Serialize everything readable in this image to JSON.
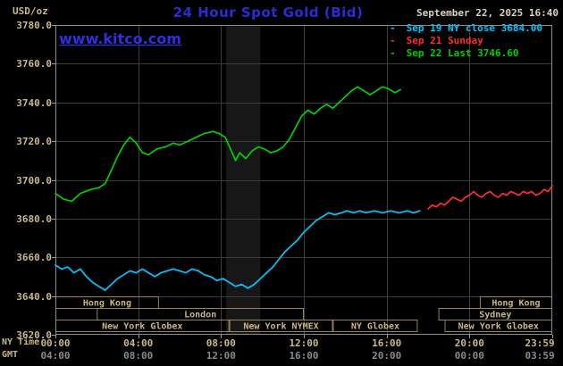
{
  "header": {
    "units": "USD/oz",
    "title": "24 Hour Spot Gold (Bid)",
    "datetime": "September 22, 2025 16:40",
    "watermark": "www.kitco.com"
  },
  "legend": {
    "items": [
      {
        "dash": "-",
        "label": "Sep 19 NY close 3684.00",
        "color": "#00c6ff"
      },
      {
        "dash": "-",
        "label": "Sep 21 Sunday",
        "color": "#ff2e2e"
      },
      {
        "dash": "-",
        "label": "Sep 22 Last 3746.60",
        "color": "#00cf00"
      }
    ]
  },
  "axes": {
    "ny": "NY Time",
    "gmt": "GMT"
  },
  "colors": {
    "background": "#000000",
    "title": "#2b2bd8",
    "watermark": "#2f2fe0",
    "datetime": "#d9d2c0",
    "tan": "#c9b787",
    "gray": "#8a8a8a",
    "grid": "#3d3d3d",
    "border": "#8c8c8c",
    "tick": "#9a9a9a",
    "band": "#171717",
    "session_border": "#96854f",
    "session_text": "#c9b787"
  },
  "chart_data": {
    "type": "line",
    "title": "24 Hour Spot Gold (Bid)",
    "xlabel": "NY Time",
    "ylabel": "USD/oz",
    "ylim": [
      3620,
      3780
    ],
    "xlim_hours": [
      0,
      24
    ],
    "grid": true,
    "legend_position": "top-right",
    "y_ticks": [
      3780,
      3760,
      3740,
      3720,
      3700,
      3680,
      3660,
      3640,
      3620
    ],
    "x_ticks": [
      {
        "t": 0,
        "ny": "00:00",
        "gmt": "04:00"
      },
      {
        "t": 4,
        "ny": "04:00",
        "gmt": "08:00"
      },
      {
        "t": 8,
        "ny": "08:00",
        "gmt": "12:00"
      },
      {
        "t": 12,
        "ny": "12:00",
        "gmt": "16:00"
      },
      {
        "t": 16,
        "ny": "16:00",
        "gmt": "20:00"
      },
      {
        "t": 20,
        "ny": "20:00",
        "gmt": "00:00"
      },
      {
        "t": 24,
        "ny": "23:59",
        "gmt": "03:59"
      }
    ],
    "shaded_bands": [
      {
        "t0": 8.25,
        "t1": 9.9
      }
    ],
    "sessions": [
      {
        "row": 0,
        "t0": 0,
        "t1": 5,
        "label": "Hong Kong"
      },
      {
        "row": 0,
        "t0": 20.5,
        "t1": 24,
        "label": "Hong Kong"
      },
      {
        "row": 1,
        "t0": 2,
        "t1": 12,
        "label": "London"
      },
      {
        "row": 1,
        "t0": 18.5,
        "t1": 24,
        "label": "Sydney"
      },
      {
        "row": 2,
        "t0": 0,
        "t1": 8.4,
        "label": "New York Globex"
      },
      {
        "row": 2,
        "t0": 8.4,
        "t1": 13.4,
        "label": "New York NYMEX"
      },
      {
        "row": 2,
        "t0": 13.4,
        "t1": 17.5,
        "label": "NY Globex"
      },
      {
        "row": 2,
        "t0": 18.8,
        "t1": 24,
        "label": "New York Globex"
      }
    ],
    "series": [
      {
        "name": "Sep 19 NY close",
        "color": "#00c6ff",
        "close": 3684.0,
        "points": [
          [
            0,
            3656
          ],
          [
            0.3,
            3654
          ],
          [
            0.6,
            3655
          ],
          [
            0.9,
            3652
          ],
          [
            1.2,
            3654
          ],
          [
            1.5,
            3650
          ],
          [
            1.8,
            3647
          ],
          [
            2.1,
            3645
          ],
          [
            2.4,
            3643
          ],
          [
            2.7,
            3646
          ],
          [
            3.0,
            3649
          ],
          [
            3.3,
            3651
          ],
          [
            3.6,
            3653
          ],
          [
            3.9,
            3652
          ],
          [
            4.2,
            3654
          ],
          [
            4.5,
            3652
          ],
          [
            4.8,
            3650
          ],
          [
            5.1,
            3652
          ],
          [
            5.4,
            3653
          ],
          [
            5.7,
            3654
          ],
          [
            6.0,
            3653
          ],
          [
            6.3,
            3652
          ],
          [
            6.6,
            3654
          ],
          [
            6.9,
            3653
          ],
          [
            7.2,
            3651
          ],
          [
            7.5,
            3650
          ],
          [
            7.8,
            3648
          ],
          [
            8.1,
            3649
          ],
          [
            8.4,
            3647
          ],
          [
            8.7,
            3645
          ],
          [
            9.0,
            3646
          ],
          [
            9.3,
            3644
          ],
          [
            9.6,
            3646
          ],
          [
            9.9,
            3649
          ],
          [
            10.2,
            3652
          ],
          [
            10.5,
            3655
          ],
          [
            10.8,
            3659
          ],
          [
            11.1,
            3663
          ],
          [
            11.4,
            3666
          ],
          [
            11.7,
            3669
          ],
          [
            12.0,
            3673
          ],
          [
            12.3,
            3676
          ],
          [
            12.6,
            3679
          ],
          [
            12.9,
            3681
          ],
          [
            13.2,
            3683
          ],
          [
            13.5,
            3682
          ],
          [
            13.8,
            3683
          ],
          [
            14.1,
            3684
          ],
          [
            14.4,
            3683
          ],
          [
            14.7,
            3684
          ],
          [
            15.0,
            3683
          ],
          [
            15.4,
            3684
          ],
          [
            15.8,
            3683
          ],
          [
            16.2,
            3684
          ],
          [
            16.6,
            3683
          ],
          [
            17.0,
            3684
          ],
          [
            17.3,
            3683
          ],
          [
            17.6,
            3684
          ]
        ]
      },
      {
        "name": "Sep 21 Sunday",
        "color": "#ff2e2e",
        "points": [
          [
            18.0,
            3685
          ],
          [
            18.2,
            3687
          ],
          [
            18.4,
            3686
          ],
          [
            18.6,
            3688
          ],
          [
            18.8,
            3687
          ],
          [
            19.0,
            3689
          ],
          [
            19.2,
            3691
          ],
          [
            19.4,
            3690
          ],
          [
            19.6,
            3689
          ],
          [
            19.8,
            3691
          ],
          [
            20.0,
            3692
          ],
          [
            20.2,
            3694
          ],
          [
            20.4,
            3692
          ],
          [
            20.6,
            3691
          ],
          [
            20.8,
            3693
          ],
          [
            21.0,
            3694
          ],
          [
            21.2,
            3692
          ],
          [
            21.4,
            3691
          ],
          [
            21.6,
            3693
          ],
          [
            21.8,
            3692
          ],
          [
            22.0,
            3694
          ],
          [
            22.2,
            3693
          ],
          [
            22.4,
            3692
          ],
          [
            22.6,
            3694
          ],
          [
            22.8,
            3693
          ],
          [
            23.0,
            3694
          ],
          [
            23.2,
            3692
          ],
          [
            23.4,
            3693
          ],
          [
            23.6,
            3695
          ],
          [
            23.8,
            3694
          ],
          [
            24.0,
            3697
          ]
        ]
      },
      {
        "name": "Sep 22 Last",
        "color": "#00cf00",
        "last": 3746.6,
        "points": [
          [
            0,
            3693
          ],
          [
            0.4,
            3690
          ],
          [
            0.8,
            3689
          ],
          [
            1.2,
            3693
          ],
          [
            1.7,
            3695
          ],
          [
            2.1,
            3696
          ],
          [
            2.4,
            3698
          ],
          [
            2.7,
            3705
          ],
          [
            3.0,
            3712
          ],
          [
            3.3,
            3718
          ],
          [
            3.6,
            3722
          ],
          [
            3.9,
            3719
          ],
          [
            4.2,
            3714
          ],
          [
            4.5,
            3713
          ],
          [
            4.9,
            3716
          ],
          [
            5.3,
            3717
          ],
          [
            5.7,
            3719
          ],
          [
            6.0,
            3718
          ],
          [
            6.4,
            3720
          ],
          [
            6.8,
            3722
          ],
          [
            7.2,
            3724
          ],
          [
            7.6,
            3725
          ],
          [
            7.9,
            3724
          ],
          [
            8.2,
            3722
          ],
          [
            8.5,
            3715
          ],
          [
            8.7,
            3710
          ],
          [
            8.9,
            3714
          ],
          [
            9.2,
            3711
          ],
          [
            9.5,
            3715
          ],
          [
            9.8,
            3717
          ],
          [
            10.1,
            3716
          ],
          [
            10.4,
            3714
          ],
          [
            10.7,
            3715
          ],
          [
            11.0,
            3717
          ],
          [
            11.3,
            3721
          ],
          [
            11.6,
            3727
          ],
          [
            11.9,
            3733
          ],
          [
            12.2,
            3736
          ],
          [
            12.5,
            3734
          ],
          [
            12.8,
            3737
          ],
          [
            13.1,
            3739
          ],
          [
            13.4,
            3737
          ],
          [
            13.7,
            3740
          ],
          [
            14.0,
            3743
          ],
          [
            14.3,
            3746
          ],
          [
            14.6,
            3748
          ],
          [
            14.9,
            3746
          ],
          [
            15.2,
            3744
          ],
          [
            15.5,
            3746
          ],
          [
            15.8,
            3748
          ],
          [
            16.1,
            3747
          ],
          [
            16.4,
            3745
          ],
          [
            16.67,
            3746.6
          ]
        ]
      }
    ]
  }
}
